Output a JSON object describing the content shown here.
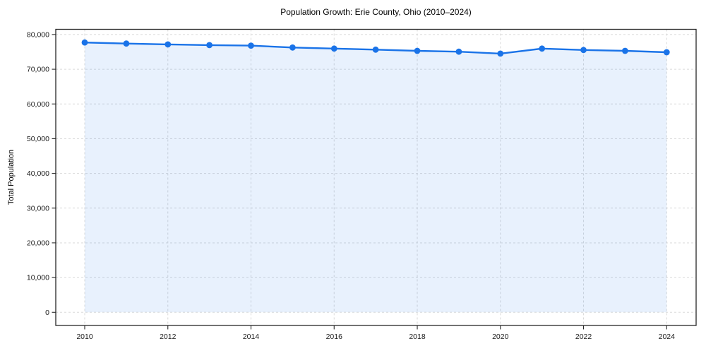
{
  "chart_data": {
    "type": "area",
    "title": "Population Growth: Erie County, Ohio (2010–2024)",
    "xlabel": "",
    "ylabel": "Total Population",
    "x": [
      2010,
      2011,
      2012,
      2013,
      2014,
      2015,
      2016,
      2017,
      2018,
      2019,
      2020,
      2021,
      2022,
      2023,
      2024
    ],
    "series": [
      {
        "name": "Total Population",
        "values": [
          77700,
          77400,
          77150,
          76950,
          76800,
          76250,
          75950,
          75650,
          75300,
          75050,
          74500,
          75950,
          75550,
          75300,
          74900
        ]
      }
    ],
    "xticks": [
      {
        "v": 2010,
        "label": "2010"
      },
      {
        "v": 2012,
        "label": "2012"
      },
      {
        "v": 2014,
        "label": "2014"
      },
      {
        "v": 2016,
        "label": "2016"
      },
      {
        "v": 2018,
        "label": "2018"
      },
      {
        "v": 2020,
        "label": "2020"
      },
      {
        "v": 2022,
        "label": "2022"
      },
      {
        "v": 2024,
        "label": "2024"
      }
    ],
    "yticks": [
      {
        "v": 0,
        "label": "0"
      },
      {
        "v": 10000,
        "label": "10,000"
      },
      {
        "v": 20000,
        "label": "20,000"
      },
      {
        "v": 30000,
        "label": "30,000"
      },
      {
        "v": 40000,
        "label": "40,000"
      },
      {
        "v": 50000,
        "label": "50,000"
      },
      {
        "v": 60000,
        "label": "60,000"
      },
      {
        "v": 70000,
        "label": "70,000"
      },
      {
        "v": 80000,
        "label": "80,000"
      }
    ],
    "ylim": [
      0,
      80000
    ],
    "xlim": [
      2010,
      2024
    ],
    "grid": true,
    "grid_style": "dashed",
    "legend": false,
    "marker": "circle",
    "colors": {
      "line": "#1a73e8",
      "marker": "#1a73e8",
      "fill": "rgba(26,115,232,0.10)",
      "grid": "#d9d9d9",
      "spine": "#262626",
      "tick_text": "#191919"
    }
  }
}
